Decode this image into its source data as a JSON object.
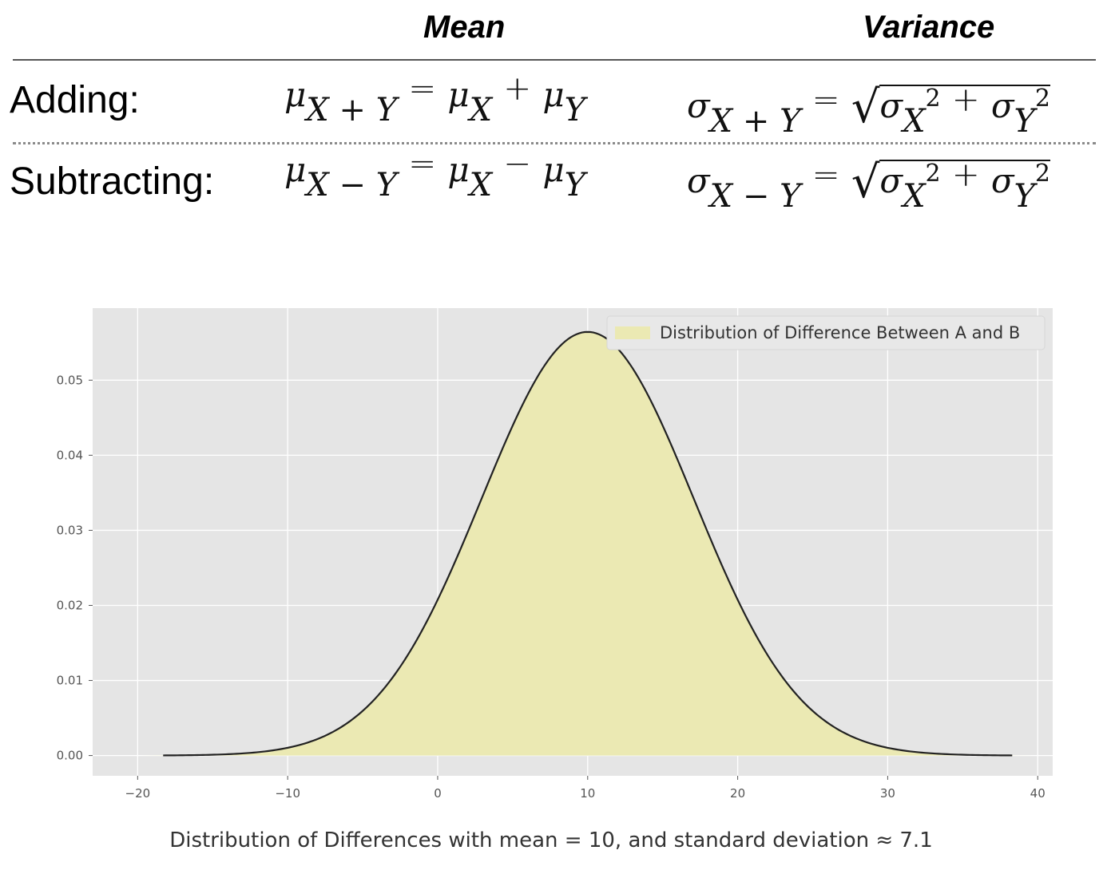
{
  "table": {
    "headers": {
      "mean": "Mean",
      "variance": "Variance"
    },
    "rows": {
      "adding": {
        "label": "Adding:",
        "mean": {
          "lhs_sym": "μ",
          "lhs_sub": "X + Y",
          "eq": "=",
          "a_sym": "μ",
          "a_sub": "X",
          "op": "+",
          "b_sym": "μ",
          "b_sub": "Y"
        },
        "variance": {
          "lhs_sym": "σ",
          "lhs_sub": "X + Y",
          "eq": "=",
          "a_sym": "σ",
          "a_sub": "X",
          "a_sup": "2",
          "op": "+",
          "b_sym": "σ",
          "b_sub": "Y",
          "b_sup": "2"
        }
      },
      "subtracting": {
        "label": "Subtracting:",
        "mean": {
          "lhs_sym": "μ",
          "lhs_sub": "X − Y",
          "eq": "=",
          "a_sym": "μ",
          "a_sub": "X",
          "op": "−",
          "b_sym": "μ",
          "b_sub": "Y"
        },
        "variance": {
          "lhs_sym": "σ",
          "lhs_sub": "X − Y",
          "eq": "=",
          "a_sym": "σ",
          "a_sub": "X",
          "a_sup": "2",
          "op": "+",
          "b_sym": "σ",
          "b_sub": "Y",
          "b_sup": "2"
        }
      }
    }
  },
  "chart_data": {
    "type": "area",
    "title": "",
    "xlabel": "",
    "ylabel": "",
    "distribution": "normal",
    "mean": 10,
    "std": 7.07,
    "x_range": [
      -18.3,
      38.3
    ],
    "xlim": [
      -23,
      41
    ],
    "ylim": [
      -0.0027,
      0.0596
    ],
    "xticks": [
      -20,
      -10,
      0,
      10,
      20,
      30,
      40
    ],
    "xtick_labels": [
      "−20",
      "−10",
      "0",
      "10",
      "20",
      "30",
      "40"
    ],
    "yticks": [
      0.0,
      0.01,
      0.02,
      0.03,
      0.04,
      0.05
    ],
    "ytick_labels": [
      "0.00",
      "0.01",
      "0.02",
      "0.03",
      "0.04",
      "0.05"
    ],
    "series": [
      {
        "name": "Distribution of Difference Between A and B",
        "fill_color": "#ebe9b3",
        "line_color": "#222222"
      }
    ],
    "legend_position": "top-right",
    "grid": true,
    "background_color": "#e5e5e5"
  },
  "caption": "Distribution of Differences with mean = 10, and standard deviation ≈ 7.1"
}
